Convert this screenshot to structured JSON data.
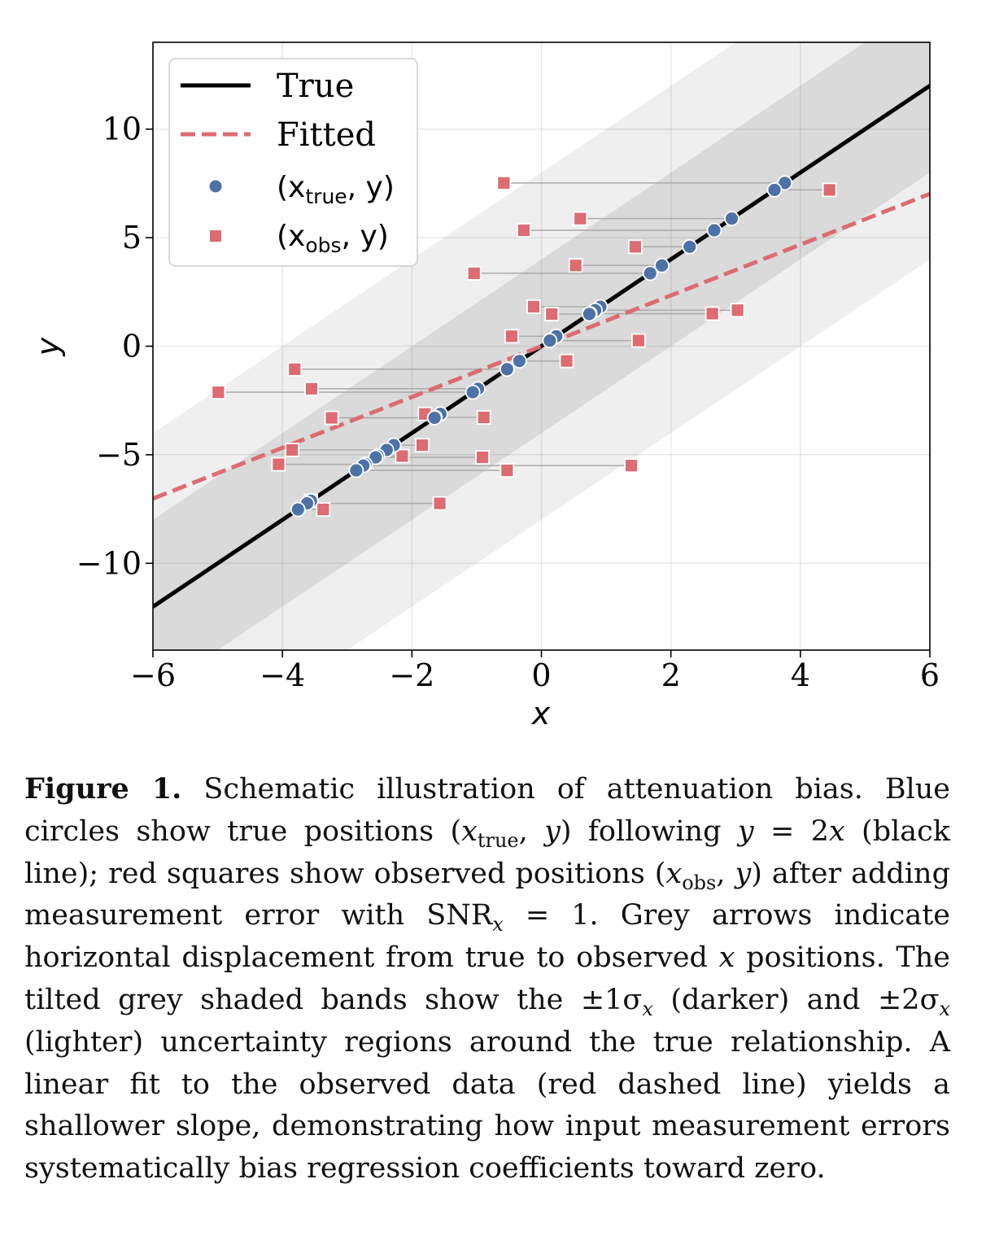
{
  "chart_data": {
    "type": "scatter",
    "xlabel": "x",
    "ylabel": "y",
    "xlim": [
      -6,
      6
    ],
    "ylim": [
      -14,
      14
    ],
    "xticks": [
      -6,
      -4,
      -2,
      0,
      2,
      4,
      6
    ],
    "xtick_labels": [
      "−6",
      "−4",
      "−2",
      "0",
      "2",
      "4",
      "6"
    ],
    "yticks": [
      -10,
      -5,
      0,
      5,
      10
    ],
    "ytick_labels": [
      "−10",
      "−5",
      "0",
      "5",
      "10"
    ],
    "grid": true,
    "legend_position": "top-left",
    "sigma_x": 2,
    "true_line": {
      "name": "True",
      "slope": 2,
      "intercept": 0,
      "color": "#000000"
    },
    "fitted_line": {
      "name": "Fitted",
      "slope": 1.17,
      "intercept": 0,
      "color": "#dd6b72"
    },
    "bands": [
      {
        "name": "±2σx",
        "halfwidth_x": 4,
        "color": "#efefef"
      },
      {
        "name": "±1σx",
        "halfwidth_x": 2,
        "color": "#dadada"
      }
    ],
    "series": [
      {
        "name": "(x_true, y)",
        "marker": "circle",
        "color": "#4c72a8"
      },
      {
        "name": "(x_obs, y)",
        "marker": "square",
        "color": "#dd6b72"
      }
    ],
    "points": [
      {
        "x_true": 3.76,
        "x_obs": -0.58,
        "y": 7.52
      },
      {
        "x_true": 3.6,
        "x_obs": 4.45,
        "y": 7.2
      },
      {
        "x_true": 2.94,
        "x_obs": 0.6,
        "y": 5.88
      },
      {
        "x_true": 2.67,
        "x_obs": -0.27,
        "y": 5.34
      },
      {
        "x_true": 2.29,
        "x_obs": 1.45,
        "y": 4.58
      },
      {
        "x_true": 1.86,
        "x_obs": 0.53,
        "y": 3.72
      },
      {
        "x_true": 1.68,
        "x_obs": -1.04,
        "y": 3.36
      },
      {
        "x_true": 0.91,
        "x_obs": -0.12,
        "y": 1.82
      },
      {
        "x_true": 0.83,
        "x_obs": 3.03,
        "y": 1.66
      },
      {
        "x_true": 0.75,
        "x_obs": 2.64,
        "y": 1.5
      },
      {
        "x_true": 0.74,
        "x_obs": 0.16,
        "y": 1.48
      },
      {
        "x_true": 0.23,
        "x_obs": -0.46,
        "y": 0.46
      },
      {
        "x_true": 0.13,
        "x_obs": 1.5,
        "y": 0.26
      },
      {
        "x_true": -0.34,
        "x_obs": 0.39,
        "y": -0.68
      },
      {
        "x_true": -0.53,
        "x_obs": -3.81,
        "y": -1.06
      },
      {
        "x_true": -0.98,
        "x_obs": -3.55,
        "y": -1.96
      },
      {
        "x_true": -1.06,
        "x_obs": -4.99,
        "y": -2.12
      },
      {
        "x_true": -1.56,
        "x_obs": -1.8,
        "y": -3.12
      },
      {
        "x_true": -1.64,
        "x_obs": -0.89,
        "y": -3.28
      },
      {
        "x_true": -1.65,
        "x_obs": -3.24,
        "y": -3.3
      },
      {
        "x_true": -2.28,
        "x_obs": -1.84,
        "y": -4.56
      },
      {
        "x_true": -2.39,
        "x_obs": -3.85,
        "y": -4.78
      },
      {
        "x_true": -2.53,
        "x_obs": -2.15,
        "y": -5.06
      },
      {
        "x_true": -2.56,
        "x_obs": -0.91,
        "y": -5.12
      },
      {
        "x_true": -2.72,
        "x_obs": -4.06,
        "y": -5.44
      },
      {
        "x_true": -2.75,
        "x_obs": 1.39,
        "y": -5.5
      },
      {
        "x_true": -2.86,
        "x_obs": -0.53,
        "y": -5.72
      },
      {
        "x_true": -3.56,
        "x_obs": -3.56,
        "y": -7.12
      },
      {
        "x_true": -3.62,
        "x_obs": -1.57,
        "y": -7.24
      },
      {
        "x_true": -3.76,
        "x_obs": -3.37,
        "y": -7.52
      }
    ]
  },
  "legend": {
    "true_label": "True",
    "fitted_label": "Fitted",
    "xtrue_prefix": "(x",
    "xtrue_sub": "true",
    "xobs_prefix": "(x",
    "xobs_sub": "obs",
    "pair_suffix": ", y)"
  },
  "caption": {
    "label": "Figure 1.",
    "s1": "Schematic illustration of attenuation bias. Blue circles show true positions (",
    "x_var": "x",
    "true_sub": "true",
    "s2": ", ",
    "y_var": "y",
    "s3": ") following ",
    "eq_y": "y",
    "eq_mid": " = 2",
    "eq_x": "x",
    "s4": " (black line); red squares show observed positions (",
    "x_var2": "x",
    "obs_sub": "obs",
    "s5": ", ",
    "y_var2": "y",
    "s6": ") after adding measurement error with SNR",
    "snr_sub": "x",
    "s7": " = 1. Grey arrows indicate horizontal displacement from true to observed ",
    "x_var3": "x",
    "s8": " positions. The tilted grey shaded bands show the ±1σ",
    "sigma_sub1": "x",
    "s9": " (darker) and ±2σ",
    "sigma_sub2": "x",
    "s10": " (lighter) uncertainty regions around the true relationship. A linear fit to the observed data (red dashed line) yields a shallower slope, demonstrating how input measurement errors systematically bias regression coefficients toward zero."
  }
}
